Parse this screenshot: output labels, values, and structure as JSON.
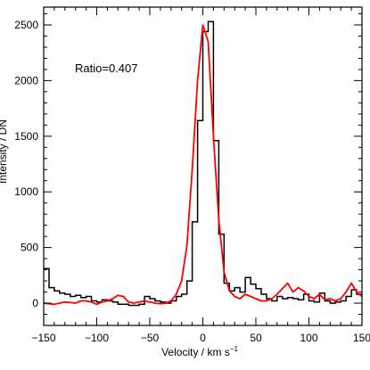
{
  "chart_data": {
    "type": "line",
    "title": "",
    "annotation": "Ratio=0.407",
    "xlabel": "Velocity / km s",
    "xlabel_superscript": "−1",
    "ylabel": "Intensity / DN",
    "xlim": [
      -150,
      150
    ],
    "ylim": [
      -200,
      2660
    ],
    "grid": false,
    "legend": "none",
    "xticks": [
      -150,
      -100,
      -50,
      0,
      50,
      100,
      150
    ],
    "xtick_labels": [
      "−150",
      "−100",
      "−50",
      "0",
      "50",
      "100",
      "150"
    ],
    "yticks": [
      0,
      500,
      1000,
      1500,
      2000,
      2500
    ],
    "ytick_labels": [
      "0",
      "500",
      "1000",
      "1500",
      "2000",
      "2500"
    ],
    "series": [
      {
        "style": "step",
        "color": "#000000",
        "x": [
          -150,
          -145,
          -140,
          -135,
          -130,
          -125,
          -120,
          -115,
          -110,
          -105,
          -100,
          -95,
          -90,
          -85,
          -80,
          -75,
          -70,
          -65,
          -60,
          -55,
          -50,
          -45,
          -40,
          -35,
          -30,
          -25,
          -20,
          -15,
          -10,
          -5,
          0,
          5,
          10,
          15,
          20,
          25,
          30,
          35,
          40,
          45,
          50,
          55,
          60,
          65,
          70,
          75,
          80,
          85,
          90,
          95,
          100,
          105,
          110,
          115,
          120,
          125,
          130,
          135,
          140,
          145
        ],
        "y": [
          310,
          140,
          110,
          90,
          80,
          60,
          70,
          50,
          60,
          20,
          10,
          30,
          20,
          10,
          -10,
          -10,
          -20,
          -20,
          -10,
          60,
          40,
          20,
          10,
          0,
          20,
          60,
          80,
          200,
          730,
          1640,
          2440,
          2530,
          1460,
          620,
          180,
          110,
          140,
          100,
          230,
          170,
          130,
          80,
          40,
          20,
          60,
          40,
          50,
          40,
          30,
          80,
          20,
          10,
          90,
          20,
          0,
          10,
          20,
          60,
          120,
          80
        ]
      },
      {
        "style": "line",
        "color": "#ff0000",
        "x": [
          -150,
          -145,
          -140,
          -135,
          -130,
          -125,
          -120,
          -115,
          -110,
          -105,
          -100,
          -95,
          -90,
          -85,
          -80,
          -75,
          -70,
          -65,
          -60,
          -55,
          -50,
          -45,
          -40,
          -35,
          -30,
          -25,
          -20,
          -15,
          -10,
          -5,
          0,
          5,
          10,
          15,
          20,
          25,
          30,
          35,
          40,
          45,
          50,
          55,
          60,
          65,
          70,
          75,
          80,
          85,
          90,
          95,
          100,
          105,
          110,
          115,
          120,
          125,
          130,
          135,
          140,
          145,
          150
        ],
        "y": [
          0,
          -5,
          -10,
          0,
          10,
          5,
          0,
          20,
          20,
          10,
          -10,
          10,
          20,
          40,
          70,
          60,
          10,
          0,
          10,
          20,
          10,
          0,
          -5,
          0,
          20,
          80,
          200,
          520,
          1200,
          2000,
          2500,
          2350,
          1500,
          750,
          280,
          110,
          60,
          40,
          80,
          60,
          40,
          20,
          20,
          40,
          80,
          130,
          180,
          100,
          140,
          110,
          60,
          40,
          80,
          30,
          40,
          20,
          40,
          100,
          180,
          100,
          60
        ]
      }
    ]
  }
}
